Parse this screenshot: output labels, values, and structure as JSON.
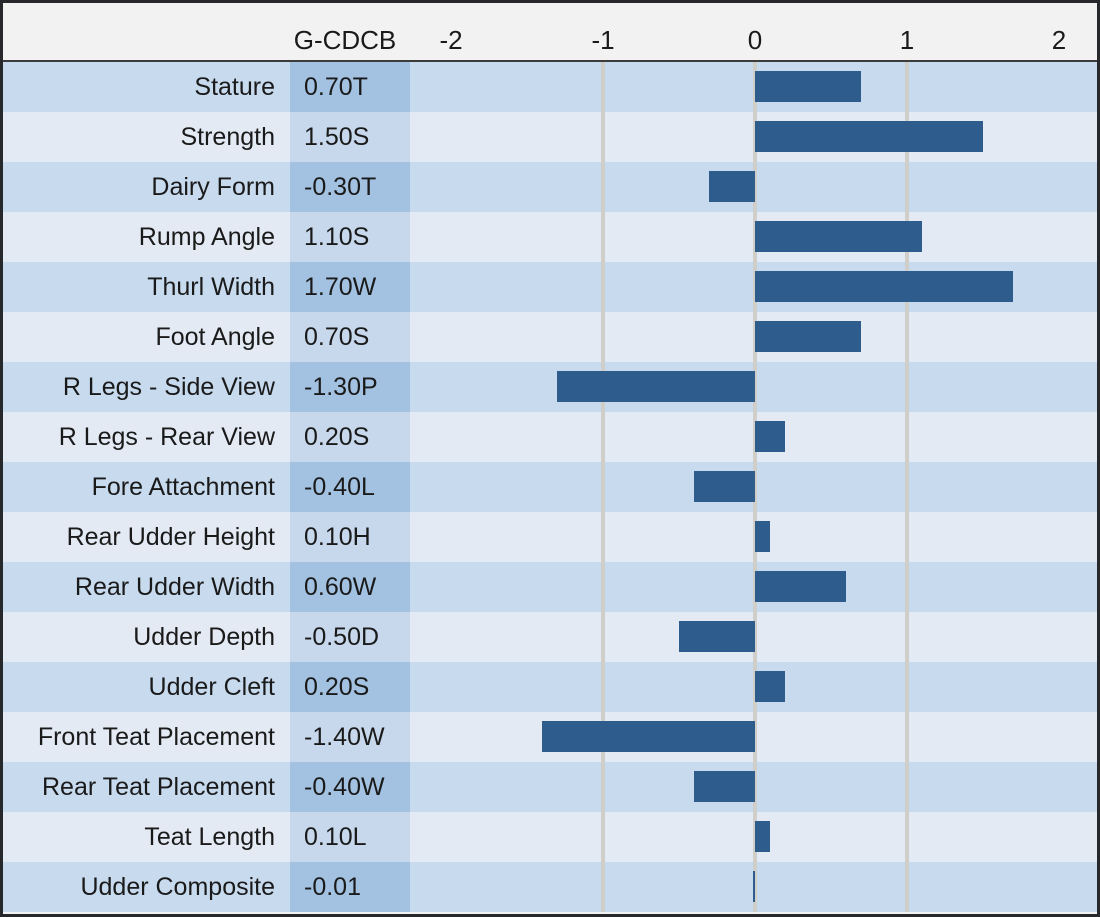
{
  "chart_data": {
    "type": "bar",
    "orientation": "horizontal",
    "title": "",
    "value_column_header": "G-CDCB",
    "axis_ticks": [
      "-2",
      "-1",
      "0",
      "1",
      "2"
    ],
    "axis_tick_values": [
      -2,
      -1,
      0,
      1,
      2
    ],
    "gridlines_at": [
      -1,
      0,
      1
    ],
    "xlim": [
      -2.27,
      2.25
    ],
    "legend": "none",
    "categories": [
      "Stature",
      "Strength",
      "Dairy Form",
      "Rump Angle",
      "Thurl Width",
      "Foot Angle",
      "R Legs - Side View",
      "R Legs - Rear View",
      "Fore Attachment",
      "Rear Udder Height",
      "Rear Udder Width",
      "Udder Depth",
      "Udder Cleft",
      "Front Teat Placement",
      "Rear Teat Placement",
      "Teat Length",
      "Udder Composite"
    ],
    "value_labels": [
      "0.70T",
      "1.50S",
      "-0.30T",
      "1.10S",
      "1.70W",
      "0.70S",
      "-1.30P",
      "0.20S",
      "-0.40L",
      "0.10H",
      "0.60W",
      "-0.50D",
      "0.20S",
      "-1.40W",
      "-0.40W",
      "0.10L",
      "-0.01"
    ],
    "values": [
      0.7,
      1.5,
      -0.3,
      1.1,
      1.7,
      0.7,
      -1.3,
      0.2,
      -0.4,
      0.1,
      0.6,
      -0.5,
      0.2,
      -1.4,
      -0.4,
      0.1,
      -0.01
    ]
  },
  "colors": {
    "bar": "#2e5d8d",
    "row_dark_bg": "#c7daee",
    "row_dark_value_bg": "#a3c2e1",
    "row_light_bg": "#e3eaf4",
    "row_light_value_bg": "#c7d8ec",
    "gridline": "#cfcec8",
    "header_bg": "#f2f2f2",
    "border": "#26282c",
    "text": "#1a1a1a"
  }
}
